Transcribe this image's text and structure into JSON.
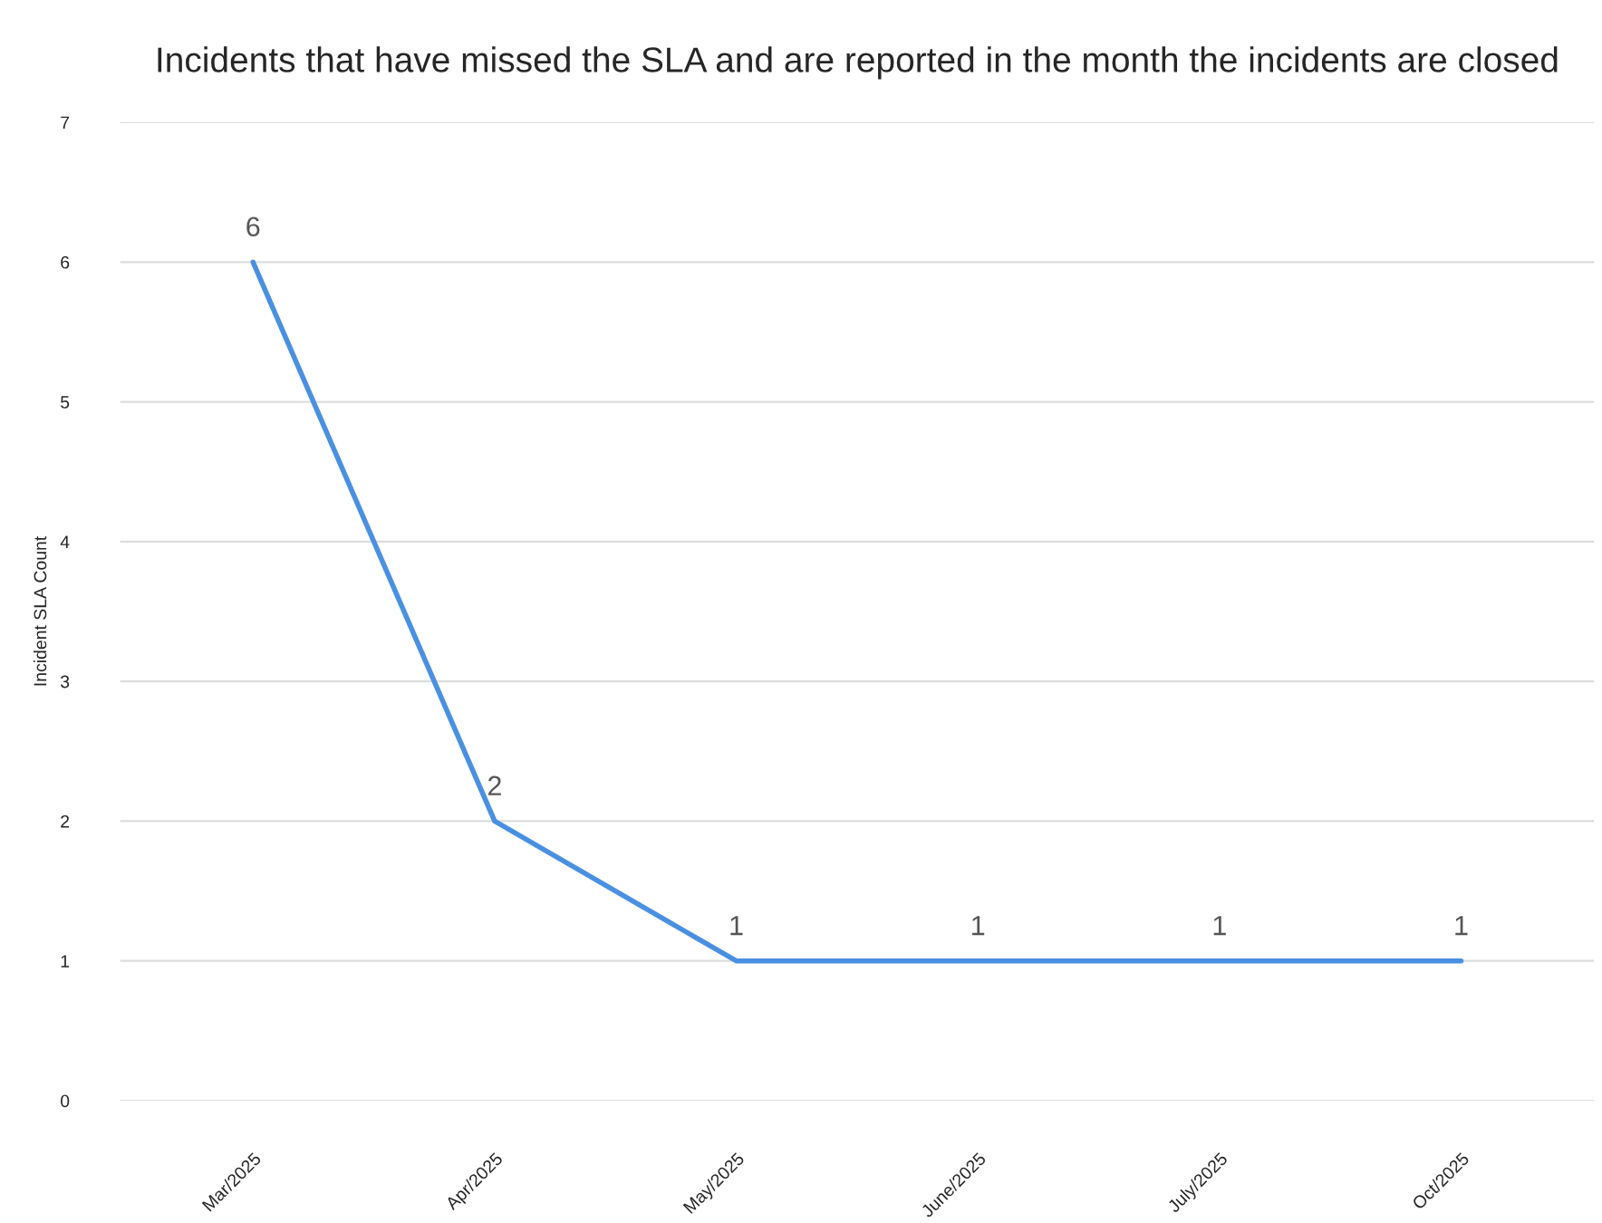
{
  "chart_data": {
    "type": "line",
    "title": "Incidents that have missed the SLA and are reported in the month the incidents are closed",
    "ylabel": "Incident SLA Count",
    "categories": [
      "Mar/2025",
      "Apr/2025",
      "May/2025",
      "June/2025",
      "July/2025",
      "Oct/2025"
    ],
    "series": [
      {
        "color": "#4a90e2",
        "values": [
          6,
          2,
          1,
          1,
          1,
          1
        ]
      }
    ],
    "ylim": [
      0,
      7
    ],
    "yticks": [
      0,
      1,
      2,
      3,
      4,
      5,
      6,
      7
    ],
    "grid": "y",
    "data_labels": true,
    "marker": "none",
    "line_style": "solid"
  }
}
